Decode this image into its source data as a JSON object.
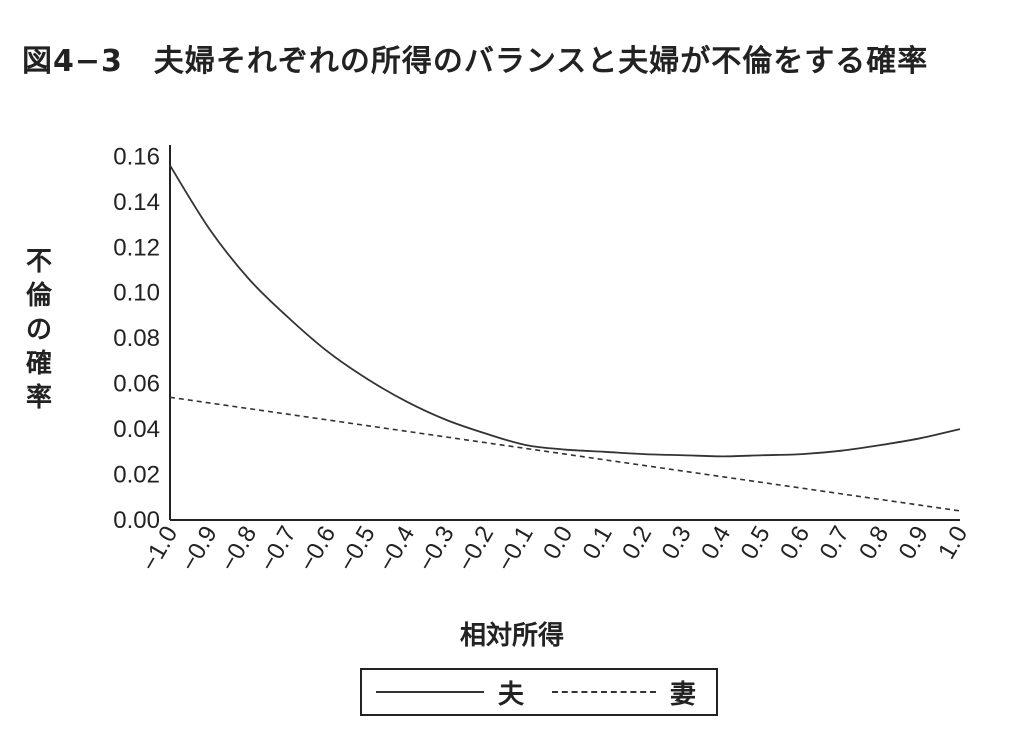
{
  "chart_data": {
    "type": "line",
    "title": "図4−3　夫婦それぞれの所得のバランスと夫婦が不倫をする確率",
    "xlabel": "相対所得",
    "ylabel": "不倫の確率",
    "x": [
      -1.0,
      -0.9,
      -0.8,
      -0.7,
      -0.6,
      -0.5,
      -0.4,
      -0.3,
      -0.2,
      -0.1,
      0.0,
      0.1,
      0.2,
      0.3,
      0.4,
      0.5,
      0.6,
      0.7,
      0.8,
      0.9,
      1.0
    ],
    "x_tick_labels": [
      "−1.0",
      "−0.9",
      "−0.8",
      "−0.7",
      "−0.6",
      "−0.5",
      "−0.4",
      "−0.3",
      "−0.2",
      "−0.1",
      "0.0",
      "0.1",
      "0.2",
      "0.3",
      "0.4",
      "0.5",
      "0.6",
      "0.7",
      "0.8",
      "0.9",
      "1.0"
    ],
    "y_tick_labels": [
      "0.00",
      "0.02",
      "0.04",
      "0.06",
      "0.08",
      "0.10",
      "0.12",
      "0.14",
      "0.16"
    ],
    "y_ticks": [
      0,
      0.02,
      0.04,
      0.06,
      0.08,
      0.1,
      0.12,
      0.14,
      0.16
    ],
    "xlim": [
      -1.0,
      1.0
    ],
    "ylim": [
      0,
      0.165
    ],
    "grid": false,
    "legend_position": "bottom",
    "series": [
      {
        "name": "夫",
        "style": "solid",
        "values": [
          0.156,
          0.128,
          0.106,
          0.089,
          0.074,
          0.062,
          0.052,
          0.044,
          0.038,
          0.033,
          0.031,
          0.03,
          0.029,
          0.0285,
          0.028,
          0.0285,
          0.029,
          0.0305,
          0.033,
          0.036,
          0.04
        ]
      },
      {
        "name": "妻",
        "style": "dashed",
        "values": [
          0.054,
          0.0515,
          0.049,
          0.0465,
          0.044,
          0.0415,
          0.039,
          0.0365,
          0.034,
          0.0315,
          0.029,
          0.0265,
          0.024,
          0.0215,
          0.019,
          0.0165,
          0.014,
          0.0115,
          0.009,
          0.0065,
          0.004
        ]
      }
    ],
    "colors": {
      "line": "#333333",
      "axis": "#222222"
    }
  }
}
